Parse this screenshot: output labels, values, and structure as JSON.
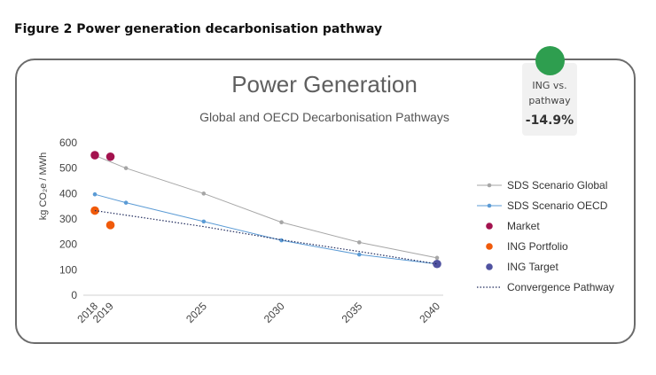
{
  "figure_title": "Figure 2  Power generation decarbonisation pathway",
  "badge": {
    "label": "ING vs. pathway",
    "value": "-14.9%",
    "status_color": "#2e9e4f"
  },
  "chart_data": {
    "type": "line",
    "title": "Power Generation",
    "subtitle": "Global and OECD Decarbonisation Pathways",
    "ylabel": "kg CO₂e / MWh",
    "xlabel": "",
    "xlim": [
      2018,
      2040
    ],
    "ylim": [
      0,
      600
    ],
    "x_ticks": [
      2018,
      2019,
      2025,
      2030,
      2035,
      2040
    ],
    "x_tick_labels": [
      "2018",
      "2019",
      "2025",
      "2030",
      "2035",
      "2040"
    ],
    "y_ticks": [
      0,
      100,
      200,
      300,
      400,
      500,
      600
    ],
    "y_tick_labels": [
      "0",
      "100",
      "200",
      "300",
      "400",
      "500",
      "600"
    ],
    "grid": false,
    "legend_position": "right",
    "series": [
      {
        "name": "SDS Scenario Global",
        "kind": "line-marker",
        "color": "#a6a6a6",
        "points": [
          [
            2018,
            550
          ],
          [
            2020,
            500
          ],
          [
            2025,
            400
          ],
          [
            2030,
            287
          ],
          [
            2035,
            208
          ],
          [
            2040,
            147
          ]
        ]
      },
      {
        "name": "SDS Scenario OECD",
        "kind": "line-marker",
        "color": "#5b9bd5",
        "points": [
          [
            2018,
            397
          ],
          [
            2020,
            364
          ],
          [
            2025,
            290
          ],
          [
            2030,
            216
          ],
          [
            2035,
            160
          ],
          [
            2040,
            123
          ]
        ]
      },
      {
        "name": "Market",
        "kind": "scatter",
        "color": "#a3124e",
        "points": [
          [
            2018,
            551
          ],
          [
            2019,
            545
          ]
        ]
      },
      {
        "name": "ING Portfolio",
        "kind": "scatter",
        "color": "#f05a0a",
        "points": [
          [
            2018,
            333
          ],
          [
            2019,
            276
          ]
        ]
      },
      {
        "name": "ING Target",
        "kind": "scatter",
        "color": "#4f52a0",
        "points": [
          [
            2040,
            123
          ]
        ]
      },
      {
        "name": "Convergence Pathway",
        "kind": "dotted",
        "color": "#1f2a5c",
        "points": [
          [
            2018,
            333
          ],
          [
            2025,
            270
          ],
          [
            2030,
            218
          ],
          [
            2035,
            172
          ],
          [
            2040,
            123
          ]
        ]
      }
    ]
  }
}
